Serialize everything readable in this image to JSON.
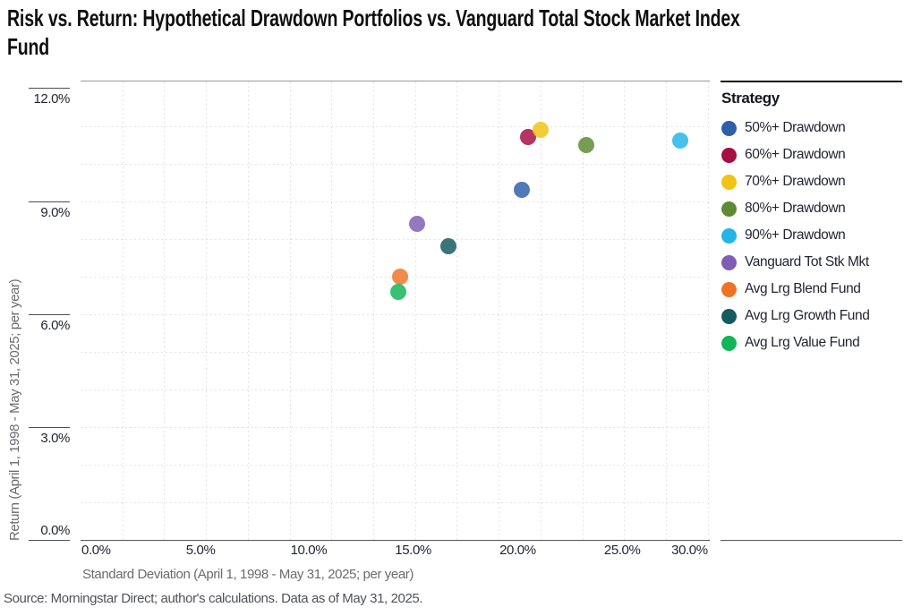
{
  "title_lines": [
    "Risk vs. Return: Hypothetical Drawdown Portfolios vs. Vanguard Total Stock Market Index",
    "Fund"
  ],
  "source": "Source: Morningstar Direct; author's calculations. Data as of May 31, 2025.",
  "legend_title": "Strategy",
  "chart_data": {
    "type": "scatter",
    "title": "Risk vs. Return: Hypothetical Drawdown Portfolios vs. Vanguard Total Stock Market Index Fund",
    "xlabel": "Standard Deviation (April 1, 1998 - May 31, 2025; per year)",
    "ylabel": "Return (April 1, 1998 - May 31, 2025; per year)",
    "xlim": [
      0,
      30.1
    ],
    "ylim": [
      0,
      12.2
    ],
    "x_tick_values": [
      0,
      5,
      10,
      15,
      20,
      25,
      30
    ],
    "x_tick_labels": [
      "0.0%",
      "5.0%",
      "10.0%",
      "15.0%",
      "20.0%",
      "25.0%",
      "30.0%"
    ],
    "y_tick_values": [
      12,
      9,
      6,
      3,
      0
    ],
    "y_tick_labels": [
      "12.0%",
      "9.0%",
      "6.0%",
      "3.0%",
      "0.0%"
    ],
    "x_grid_step": 2,
    "y_grid_step": 1,
    "grid": "dashed",
    "legend_position": "right",
    "series": [
      {
        "name": "50%+ Drawdown",
        "color": "#2e5fa9",
        "x": 21.1,
        "y": 9.3
      },
      {
        "name": "60%+ Drawdown",
        "color": "#a60d45",
        "x": 21.4,
        "y": 10.7
      },
      {
        "name": "70%+ Drawdown",
        "color": "#f0c314",
        "x": 22.0,
        "y": 10.9
      },
      {
        "name": "80%+ Drawdown",
        "color": "#5d8a35",
        "x": 24.2,
        "y": 10.5
      },
      {
        "name": "90%+ Drawdown",
        "color": "#23b5e8",
        "x": 28.7,
        "y": 10.6
      },
      {
        "name": "Vanguard Tot Stk Mkt",
        "color": "#7e5fb5",
        "x": 16.1,
        "y": 8.4
      },
      {
        "name": "Avg Lrg Blend Fund",
        "color": "#ee7327",
        "x": 15.3,
        "y": 7.0
      },
      {
        "name": "Avg Lrg Growth Fund",
        "color": "#155a5e",
        "x": 17.6,
        "y": 7.8
      },
      {
        "name": "Avg Lrg Value Fund",
        "color": "#12b558",
        "x": 15.2,
        "y": 6.6
      }
    ]
  }
}
